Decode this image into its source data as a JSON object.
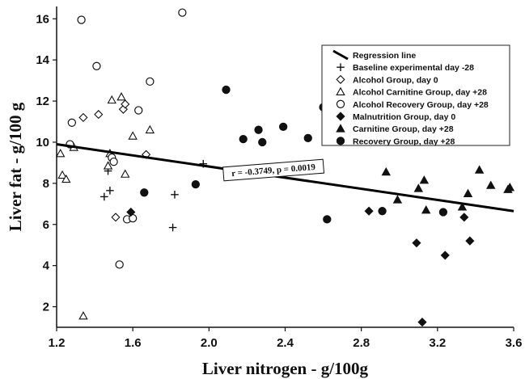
{
  "chart_data": {
    "type": "scatter",
    "xlabel": "Liver nitrogen - g/100g",
    "ylabel": "Liver fat - g/100 g",
    "xlim": [
      1.2,
      3.6
    ],
    "ylim": [
      1,
      16.6
    ],
    "x_ticks": [
      "1.2",
      "1.6",
      "2.0",
      "2.4",
      "2.8",
      "3.2",
      "3.6"
    ],
    "y_ticks": [
      "2",
      "4",
      "6",
      "8",
      "10",
      "12",
      "14",
      "16"
    ],
    "grid": false,
    "legend_position": "top-right",
    "annotation": "r = -0.3749, p = 0.0019",
    "regression_line": {
      "label": "Regression line",
      "x": [
        1.2,
        3.6
      ],
      "y": [
        9.9,
        6.65
      ]
    },
    "series": [
      {
        "name": "Baseline experimental day -28",
        "marker": "plus",
        "points": [
          [
            1.45,
            7.35
          ],
          [
            1.48,
            7.65
          ],
          [
            1.47,
            8.6
          ],
          [
            1.97,
            8.95
          ],
          [
            1.81,
            5.85
          ],
          [
            1.82,
            7.45
          ]
        ]
      },
      {
        "name": "Alcohol Group, day 0",
        "marker": "diamond-open",
        "points": [
          [
            1.34,
            11.2
          ],
          [
            1.42,
            11.35
          ],
          [
            1.55,
            11.6
          ],
          [
            1.56,
            11.85
          ],
          [
            1.67,
            9.4
          ],
          [
            1.51,
            6.35
          ]
        ]
      },
      {
        "name": "Alcohol Carnitine Group, day +28",
        "marker": "triangle-open",
        "points": [
          [
            1.22,
            9.45
          ],
          [
            1.23,
            8.4
          ],
          [
            1.25,
            8.2
          ],
          [
            1.29,
            9.75
          ],
          [
            1.34,
            1.55
          ],
          [
            1.47,
            8.85
          ],
          [
            1.48,
            9.45
          ],
          [
            1.49,
            12.05
          ],
          [
            1.54,
            12.2
          ],
          [
            1.56,
            8.45
          ],
          [
            1.6,
            10.3
          ],
          [
            1.69,
            10.6
          ]
        ]
      },
      {
        "name": "Alcohol Recovery Group, day +28",
        "marker": "circle-open",
        "points": [
          [
            1.27,
            9.9
          ],
          [
            1.28,
            10.95
          ],
          [
            1.33,
            15.95
          ],
          [
            1.41,
            13.7
          ],
          [
            1.49,
            9.25
          ],
          [
            1.5,
            9.05
          ],
          [
            1.53,
            4.05
          ],
          [
            1.57,
            6.25
          ],
          [
            1.6,
            6.3
          ],
          [
            1.63,
            11.55
          ],
          [
            1.69,
            12.95
          ],
          [
            1.86,
            16.3
          ]
        ]
      },
      {
        "name": "Malnutrition Group, day 0",
        "marker": "diamond-filled",
        "points": [
          [
            1.59,
            6.6
          ],
          [
            2.84,
            6.65
          ],
          [
            3.09,
            5.1
          ],
          [
            3.12,
            1.25
          ],
          [
            3.24,
            4.5
          ],
          [
            3.37,
            5.2
          ],
          [
            3.34,
            6.35
          ]
        ]
      },
      {
        "name": "Carnitine Group, day +28",
        "marker": "triangle-filled",
        "points": [
          [
            2.93,
            8.55
          ],
          [
            2.99,
            7.2
          ],
          [
            3.1,
            7.75
          ],
          [
            3.13,
            8.15
          ],
          [
            3.14,
            6.7
          ],
          [
            3.33,
            6.85
          ],
          [
            3.36,
            7.5
          ],
          [
            3.42,
            8.65
          ],
          [
            3.48,
            7.9
          ],
          [
            3.57,
            7.7
          ],
          [
            3.58,
            7.8
          ]
        ]
      },
      {
        "name": "Recovery Group, day +28",
        "marker": "circle-filled",
        "points": [
          [
            1.66,
            7.55
          ],
          [
            1.93,
            7.95
          ],
          [
            2.09,
            12.55
          ],
          [
            2.18,
            10.15
          ],
          [
            2.26,
            10.6
          ],
          [
            2.28,
            10.0
          ],
          [
            2.39,
            10.75
          ],
          [
            2.52,
            10.2
          ],
          [
            2.6,
            11.7
          ],
          [
            2.62,
            6.25
          ],
          [
            2.91,
            6.65
          ],
          [
            3.23,
            6.6
          ]
        ]
      }
    ]
  }
}
